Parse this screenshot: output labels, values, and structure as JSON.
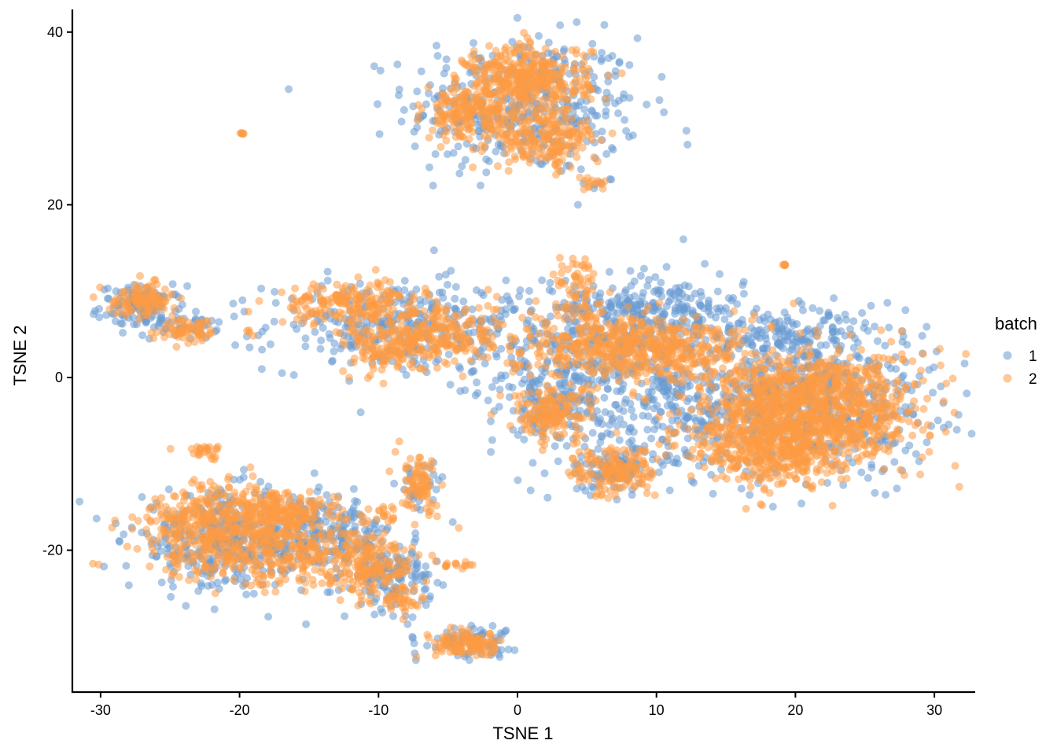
{
  "chart_data": {
    "type": "scatter",
    "title": "",
    "xlabel": "TSNE 1",
    "ylabel": "TSNE 2",
    "xlim": [
      -32.5,
      33
    ],
    "ylim": [
      -36.5,
      42.5
    ],
    "xticks": [
      -30,
      -20,
      -10,
      0,
      10,
      20,
      30
    ],
    "yticks": [
      -20,
      0,
      20,
      40
    ],
    "xtick_labels": [
      "-30",
      "-20",
      "-10",
      "0",
      "10",
      "20",
      "30"
    ],
    "ytick_labels": [
      "-20",
      "0",
      "20",
      "40"
    ],
    "grid": false,
    "legend": {
      "title": "batch",
      "position": "right",
      "entries": [
        {
          "label": "1",
          "color": "#6a9bd1"
        },
        {
          "label": "2",
          "color": "#fd9a44"
        }
      ]
    },
    "point_alpha": 0.55,
    "point_radius_px": 5,
    "series": [
      {
        "name": "1",
        "color": "#6a9bd1",
        "clusters": [
          {
            "cx": 0.5,
            "cy": 31.5,
            "sx": 4.2,
            "sy": 4.0,
            "n": 420
          },
          {
            "cx": 6.0,
            "cy": 22.6,
            "sx": 0.6,
            "sy": 0.3,
            "n": 6
          },
          {
            "cx": -27.0,
            "cy": 8.2,
            "sx": 1.5,
            "sy": 1.2,
            "n": 110
          },
          {
            "cx": -24.0,
            "cy": 6.0,
            "sx": 1.2,
            "sy": 0.8,
            "n": 40
          },
          {
            "cx": -9.0,
            "cy": 6.0,
            "sx": 4.5,
            "sy": 2.6,
            "n": 300
          },
          {
            "cx": 4.5,
            "cy": 4.0,
            "sx": 4.5,
            "sy": 3.5,
            "n": 260
          },
          {
            "cx": 10.0,
            "cy": 8.0,
            "sx": 3.2,
            "sy": 2.0,
            "n": 220
          },
          {
            "cx": 8.0,
            "cy": -2.0,
            "sx": 5.0,
            "sy": 4.5,
            "n": 300
          },
          {
            "cx": 20.0,
            "cy": -3.0,
            "sx": 5.0,
            "sy": 4.0,
            "n": 650
          },
          {
            "cx": 20.0,
            "cy": 5.0,
            "sx": 4.0,
            "sy": 1.5,
            "n": 160
          },
          {
            "cx": 7.0,
            "cy": -10.5,
            "sx": 2.0,
            "sy": 1.5,
            "n": 90
          },
          {
            "cx": 2.5,
            "cy": -3.5,
            "sx": 2.0,
            "sy": 1.8,
            "n": 80
          },
          {
            "cx": -21.0,
            "cy": -19.0,
            "sx": 3.5,
            "sy": 2.8,
            "n": 380
          },
          {
            "cx": -14.0,
            "cy": -18.0,
            "sx": 2.5,
            "sy": 2.0,
            "n": 180
          },
          {
            "cx": -9.0,
            "cy": -23.0,
            "sx": 1.4,
            "sy": 2.0,
            "n": 140
          },
          {
            "cx": -7.0,
            "cy": -13.0,
            "sx": 0.9,
            "sy": 1.8,
            "n": 30
          },
          {
            "cx": -3.5,
            "cy": -30.5,
            "sx": 1.6,
            "sy": 0.9,
            "n": 80
          }
        ]
      },
      {
        "name": "2",
        "color": "#fd9a44",
        "clusters": [
          {
            "cx": 0.8,
            "cy": 34.5,
            "sx": 2.2,
            "sy": 2.0,
            "n": 380
          },
          {
            "cx": -3.5,
            "cy": 30.5,
            "sx": 1.6,
            "sy": 1.5,
            "n": 180
          },
          {
            "cx": 2.0,
            "cy": 27.5,
            "sx": 2.0,
            "sy": 1.6,
            "n": 200
          },
          {
            "cx": 5.5,
            "cy": 22.6,
            "sx": 0.5,
            "sy": 0.4,
            "n": 14
          },
          {
            "cx": -19.8,
            "cy": 28.3,
            "sx": 0.05,
            "sy": 0.05,
            "n": 6
          },
          {
            "cx": 19.2,
            "cy": 13.0,
            "sx": 0.05,
            "sy": 0.05,
            "n": 6
          },
          {
            "cx": -27.0,
            "cy": 9.0,
            "sx": 1.2,
            "sy": 0.9,
            "n": 110
          },
          {
            "cx": -23.5,
            "cy": 5.5,
            "sx": 1.2,
            "sy": 0.7,
            "n": 60
          },
          {
            "cx": -19.2,
            "cy": 5.4,
            "sx": 0.3,
            "sy": 0.2,
            "n": 4
          },
          {
            "cx": -12.0,
            "cy": 8.5,
            "sx": 2.5,
            "sy": 1.2,
            "n": 200
          },
          {
            "cx": -9.5,
            "cy": 3.5,
            "sx": 1.5,
            "sy": 1.5,
            "n": 120
          },
          {
            "cx": -5.5,
            "cy": 5.0,
            "sx": 2.0,
            "sy": 2.0,
            "n": 200
          },
          {
            "cx": 4.5,
            "cy": 10.0,
            "sx": 0.8,
            "sy": 2.5,
            "n": 60
          },
          {
            "cx": 6.0,
            "cy": 4.0,
            "sx": 3.5,
            "sy": 2.0,
            "n": 360
          },
          {
            "cx": 11.0,
            "cy": 3.0,
            "sx": 2.5,
            "sy": 1.8,
            "n": 200
          },
          {
            "cx": 2.5,
            "cy": -4.0,
            "sx": 1.5,
            "sy": 1.6,
            "n": 160
          },
          {
            "cx": 7.0,
            "cy": -11.0,
            "sx": 1.5,
            "sy": 1.4,
            "n": 150
          },
          {
            "cx": 21.5,
            "cy": -3.5,
            "sx": 3.8,
            "sy": 3.2,
            "n": 1000
          },
          {
            "cx": 18.5,
            "cy": -8.0,
            "sx": 2.2,
            "sy": 2.2,
            "n": 350
          },
          {
            "cx": 14.0,
            "cy": -7.0,
            "sx": 3.0,
            "sy": 3.5,
            "n": 60
          },
          {
            "cx": -21.5,
            "cy": -17.5,
            "sx": 2.8,
            "sy": 2.6,
            "n": 420
          },
          {
            "cx": -17.0,
            "cy": -15.5,
            "sx": 2.0,
            "sy": 1.2,
            "n": 180
          },
          {
            "cx": -15.5,
            "cy": -20.5,
            "sx": 3.5,
            "sy": 1.8,
            "n": 260
          },
          {
            "cx": -10.5,
            "cy": -22.5,
            "sx": 1.5,
            "sy": 1.6,
            "n": 120
          },
          {
            "cx": -8.5,
            "cy": -26.0,
            "sx": 0.8,
            "sy": 0.8,
            "n": 40
          },
          {
            "cx": -22.5,
            "cy": -8.5,
            "sx": 0.9,
            "sy": 0.5,
            "n": 25
          },
          {
            "cx": -7.0,
            "cy": -12.5,
            "sx": 0.7,
            "sy": 1.6,
            "n": 80
          },
          {
            "cx": -9.5,
            "cy": -16.0,
            "sx": 0.8,
            "sy": 0.6,
            "n": 20
          },
          {
            "cx": -4.0,
            "cy": -21.8,
            "sx": 0.8,
            "sy": 0.2,
            "n": 14
          },
          {
            "cx": -3.5,
            "cy": -31.0,
            "sx": 1.3,
            "sy": 0.7,
            "n": 110
          }
        ]
      }
    ]
  }
}
